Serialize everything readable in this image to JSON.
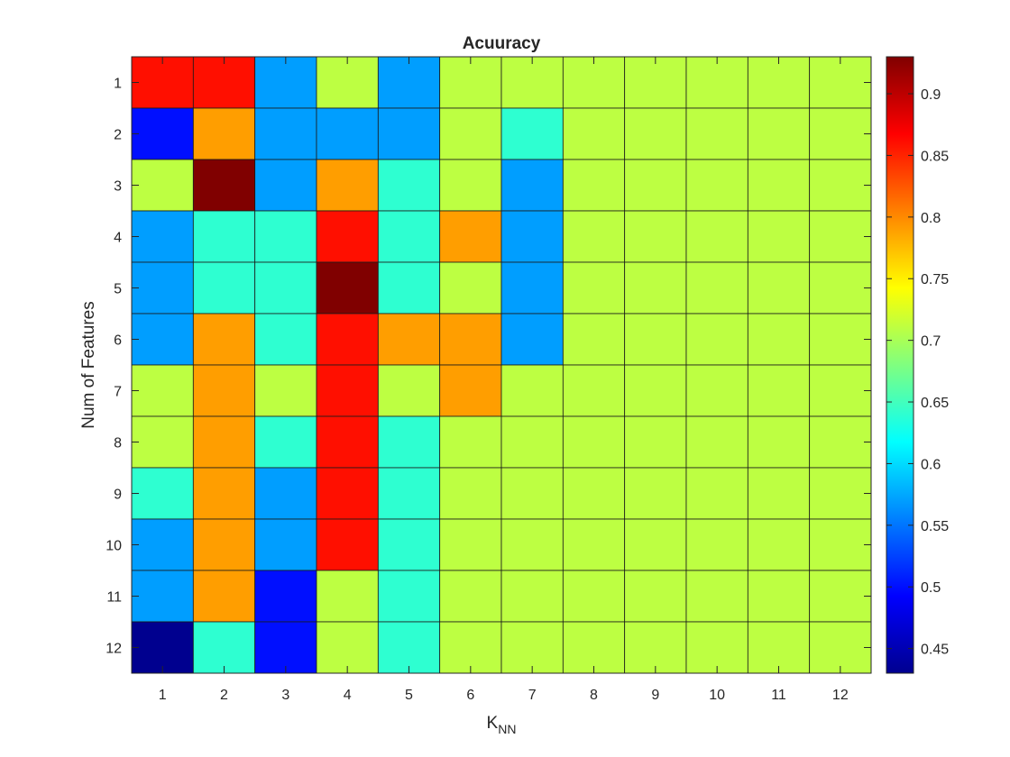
{
  "chart_data": {
    "type": "heatmap",
    "title": "Acuuracy",
    "xlabel": "K",
    "xlabel_sub": "NN",
    "ylabel": "Num of Features",
    "x_categories": [
      "1",
      "2",
      "3",
      "4",
      "5",
      "6",
      "7",
      "8",
      "9",
      "10",
      "11",
      "12"
    ],
    "y_categories": [
      "1",
      "2",
      "3",
      "4",
      "5",
      "6",
      "7",
      "8",
      "9",
      "10",
      "11",
      "12"
    ],
    "values": [
      [
        0.86,
        0.86,
        0.57,
        0.71,
        0.57,
        0.71,
        0.71,
        0.71,
        0.71,
        0.71,
        0.71,
        0.71
      ],
      [
        0.5,
        0.79,
        0.57,
        0.57,
        0.57,
        0.71,
        0.64,
        0.71,
        0.71,
        0.71,
        0.71,
        0.71
      ],
      [
        0.71,
        0.93,
        0.57,
        0.79,
        0.64,
        0.71,
        0.57,
        0.71,
        0.71,
        0.71,
        0.71,
        0.71
      ],
      [
        0.57,
        0.64,
        0.64,
        0.86,
        0.64,
        0.79,
        0.57,
        0.71,
        0.71,
        0.71,
        0.71,
        0.71
      ],
      [
        0.57,
        0.64,
        0.64,
        0.93,
        0.64,
        0.71,
        0.57,
        0.71,
        0.71,
        0.71,
        0.71,
        0.71
      ],
      [
        0.57,
        0.79,
        0.64,
        0.86,
        0.79,
        0.79,
        0.57,
        0.71,
        0.71,
        0.71,
        0.71,
        0.71
      ],
      [
        0.71,
        0.79,
        0.71,
        0.86,
        0.71,
        0.79,
        0.71,
        0.71,
        0.71,
        0.71,
        0.71,
        0.71
      ],
      [
        0.71,
        0.79,
        0.64,
        0.86,
        0.64,
        0.71,
        0.71,
        0.71,
        0.71,
        0.71,
        0.71,
        0.71
      ],
      [
        0.64,
        0.79,
        0.57,
        0.86,
        0.64,
        0.71,
        0.71,
        0.71,
        0.71,
        0.71,
        0.71,
        0.71
      ],
      [
        0.57,
        0.79,
        0.57,
        0.86,
        0.64,
        0.71,
        0.71,
        0.71,
        0.71,
        0.71,
        0.71,
        0.71
      ],
      [
        0.57,
        0.79,
        0.5,
        0.71,
        0.64,
        0.71,
        0.71,
        0.71,
        0.71,
        0.71,
        0.71,
        0.71
      ],
      [
        0.43,
        0.64,
        0.5,
        0.71,
        0.64,
        0.71,
        0.71,
        0.71,
        0.71,
        0.71,
        0.71,
        0.71
      ]
    ],
    "clim": [
      0.43,
      0.93
    ],
    "colormap": "jet",
    "colorbar_ticks": [
      "0.45",
      "0.5",
      "0.55",
      "0.6",
      "0.65",
      "0.7",
      "0.75",
      "0.8",
      "0.85",
      "0.9"
    ],
    "colorbar_position": "right",
    "grid": true
  }
}
